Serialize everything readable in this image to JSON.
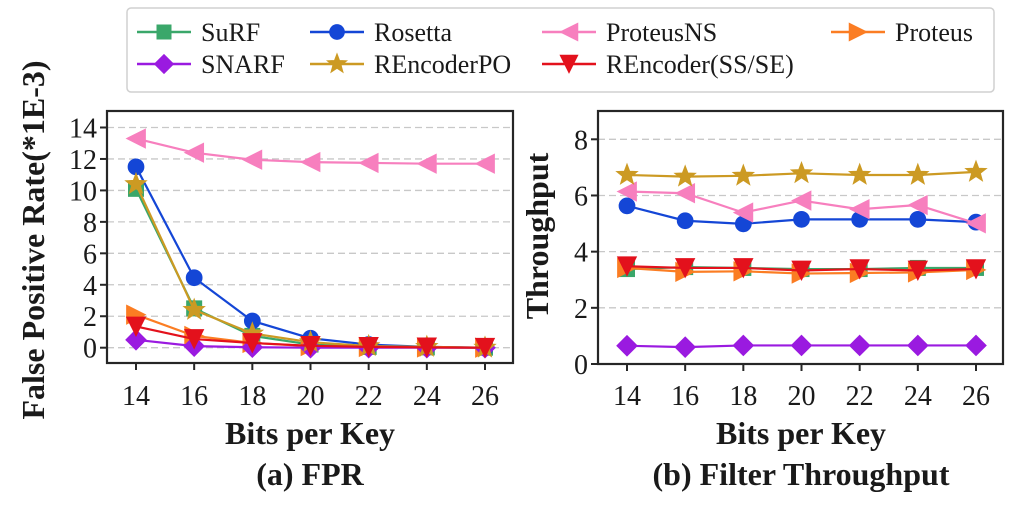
{
  "legend": {
    "position": "top-center",
    "rows": [
      [
        "SuRF",
        "Rosetta",
        "ProteusNS",
        "Proteus"
      ],
      [
        "SNARF",
        "REncoderPO",
        "REncoder(SS/SE)"
      ]
    ]
  },
  "series_style": {
    "SuRF": {
      "color": "#3aa76a",
      "marker": "square"
    },
    "Rosetta": {
      "color": "#1446d6",
      "marker": "circle"
    },
    "ProteusNS": {
      "color": "#f77fbe",
      "marker": "triangle-left"
    },
    "Proteus": {
      "color": "#fb7d23",
      "marker": "triangle-right"
    },
    "SNARF": {
      "color": "#9a1ae0",
      "marker": "diamond"
    },
    "REncoderPO": {
      "color": "#cc9a23",
      "marker": "star"
    },
    "REncoder(SS/SE)": {
      "color": "#e3111c",
      "marker": "triangle-down"
    }
  },
  "chart_data": [
    {
      "type": "line",
      "id": "fpr",
      "caption": "(a) FPR",
      "title": "",
      "xlabel": "Bits per Key",
      "ylabel": "False Positive Rate(*1E-3)",
      "x": [
        14,
        16,
        18,
        20,
        22,
        24,
        26
      ],
      "xticks": [
        "14",
        "16",
        "18",
        "20",
        "22",
        "24",
        "26"
      ],
      "yticks": [
        "0",
        "2",
        "4",
        "6",
        "8",
        "10",
        "12",
        "14"
      ],
      "ylim": [
        -0.9,
        14.9
      ],
      "grid": "y-dashed",
      "series": [
        {
          "name": "SuRF",
          "values": [
            10.1,
            2.5,
            0.75,
            0.2,
            0.05,
            0.02,
            0.0
          ]
        },
        {
          "name": "Rosetta",
          "values": [
            11.5,
            4.45,
            1.7,
            0.6,
            0.2,
            0.05,
            0.0
          ]
        },
        {
          "name": "ProteusNS",
          "values": [
            13.3,
            12.4,
            11.95,
            11.8,
            11.75,
            11.7,
            11.7
          ]
        },
        {
          "name": "Proteus",
          "values": [
            2.1,
            0.75,
            0.3,
            0.1,
            0.05,
            0.02,
            0.0
          ]
        },
        {
          "name": "SNARF",
          "values": [
            0.5,
            0.1,
            0.03,
            0.0,
            0.0,
            0.0,
            0.0
          ]
        },
        {
          "name": "REncoderPO",
          "values": [
            10.4,
            2.4,
            0.9,
            0.35,
            0.1,
            0.05,
            0.0
          ]
        },
        {
          "name": "REncoder(SS/SE)",
          "values": [
            1.35,
            0.55,
            0.3,
            0.12,
            0.05,
            0.02,
            0.0
          ]
        }
      ]
    },
    {
      "type": "line",
      "id": "throughput",
      "caption": "(b) Filter Throughput",
      "title": "",
      "xlabel": "Bits per Key",
      "ylabel": "Throughput",
      "x": [
        14,
        16,
        18,
        20,
        22,
        24,
        26
      ],
      "xticks": [
        "14",
        "16",
        "18",
        "20",
        "22",
        "24",
        "26"
      ],
      "yticks": [
        "0",
        "2",
        "4",
        "6",
        "8"
      ],
      "ylim": [
        0,
        9
      ],
      "grid": "y-dashed",
      "series": [
        {
          "name": "SuRF",
          "values": [
            3.38,
            3.45,
            3.42,
            3.38,
            3.38,
            3.42,
            3.42
          ]
        },
        {
          "name": "Rosetta",
          "values": [
            5.63,
            5.1,
            4.99,
            5.15,
            5.15,
            5.15,
            5.05
          ]
        },
        {
          "name": "ProteusNS",
          "values": [
            6.14,
            6.08,
            5.39,
            5.82,
            5.51,
            5.66,
            5.01
          ]
        },
        {
          "name": "Proteus",
          "values": [
            3.42,
            3.28,
            3.3,
            3.22,
            3.24,
            3.26,
            3.35
          ]
        },
        {
          "name": "SNARF",
          "values": [
            0.65,
            0.6,
            0.66,
            0.66,
            0.66,
            0.66,
            0.66
          ]
        },
        {
          "name": "REncoderPO",
          "values": [
            6.73,
            6.67,
            6.7,
            6.79,
            6.73,
            6.73,
            6.84
          ]
        },
        {
          "name": "REncoder(SS/SE)",
          "values": [
            3.48,
            3.42,
            3.42,
            3.33,
            3.38,
            3.33,
            3.38
          ]
        }
      ]
    }
  ]
}
